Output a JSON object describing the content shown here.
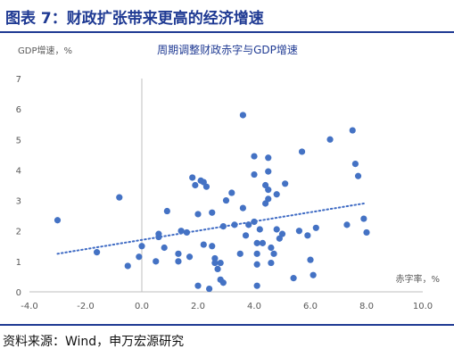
{
  "figure": {
    "title": "图表 7：财政扩张带来更高的经济增速",
    "source": "资料来源：Wind，申万宏源研究"
  },
  "colors": {
    "header_blue": "#1f3a93",
    "point_blue": "#4472c4",
    "trend_blue": "#3f6bc4",
    "axis_gray": "#bfbfbf",
    "text_gray": "#595959"
  },
  "chart_data": {
    "type": "scatter",
    "title": "周期调整财政赤字与GDP增速",
    "ylabel": "GDP增速，%",
    "xlabel": "赤字率，%",
    "xlim": [
      -4,
      10
    ],
    "ylim": [
      0,
      7
    ],
    "x_ticks": [
      -4,
      -2,
      0,
      2,
      4,
      6,
      8,
      10
    ],
    "x_tick_labels": [
      "-4.0",
      "-2.0",
      "0.0",
      "2.0",
      "4.0",
      "6.0",
      "8.0",
      "10.0"
    ],
    "y_ticks": [
      0,
      1,
      2,
      3,
      4,
      5,
      6,
      7
    ],
    "y_tick_labels": [
      "0",
      "1",
      "2",
      "3",
      "4",
      "5",
      "6",
      "7"
    ],
    "grid": false,
    "legend": "none",
    "trendline": {
      "style": "dotted",
      "x": [
        -3.0,
        7.9
      ],
      "y": [
        1.25,
        2.9
      ]
    },
    "points": [
      [
        -3.0,
        2.35
      ],
      [
        -0.8,
        3.1
      ],
      [
        -1.6,
        1.3
      ],
      [
        -0.5,
        0.85
      ],
      [
        -0.1,
        1.15
      ],
      [
        0.0,
        1.5
      ],
      [
        0.5,
        1.0
      ],
      [
        0.6,
        1.9
      ],
      [
        0.6,
        1.8
      ],
      [
        0.8,
        1.45
      ],
      [
        0.9,
        2.65
      ],
      [
        1.3,
        1.25
      ],
      [
        1.3,
        1.0
      ],
      [
        1.4,
        2.0
      ],
      [
        1.6,
        1.95
      ],
      [
        1.7,
        1.15
      ],
      [
        1.8,
        3.75
      ],
      [
        1.9,
        3.5
      ],
      [
        2.0,
        2.55
      ],
      [
        2.0,
        0.2
      ],
      [
        2.1,
        3.65
      ],
      [
        2.2,
        3.6
      ],
      [
        2.2,
        1.55
      ],
      [
        2.3,
        3.45
      ],
      [
        2.4,
        0.1
      ],
      [
        2.5,
        2.6
      ],
      [
        2.5,
        1.5
      ],
      [
        2.6,
        1.1
      ],
      [
        2.6,
        0.95
      ],
      [
        2.7,
        0.75
      ],
      [
        2.8,
        0.95
      ],
      [
        2.8,
        0.4
      ],
      [
        2.9,
        2.15
      ],
      [
        2.9,
        0.3
      ],
      [
        3.0,
        3.0
      ],
      [
        3.2,
        3.25
      ],
      [
        3.3,
        2.2
      ],
      [
        3.5,
        1.25
      ],
      [
        3.6,
        5.8
      ],
      [
        3.6,
        2.75
      ],
      [
        3.7,
        1.85
      ],
      [
        3.8,
        2.2
      ],
      [
        4.0,
        4.45
      ],
      [
        4.0,
        3.85
      ],
      [
        4.0,
        2.3
      ],
      [
        4.1,
        1.6
      ],
      [
        4.1,
        1.25
      ],
      [
        4.1,
        0.9
      ],
      [
        4.1,
        0.2
      ],
      [
        4.2,
        2.05
      ],
      [
        4.3,
        1.6
      ],
      [
        4.4,
        3.5
      ],
      [
        4.4,
        2.9
      ],
      [
        4.5,
        4.4
      ],
      [
        4.5,
        3.95
      ],
      [
        4.5,
        3.35
      ],
      [
        4.5,
        3.05
      ],
      [
        4.6,
        1.45
      ],
      [
        4.6,
        0.95
      ],
      [
        4.7,
        1.25
      ],
      [
        4.8,
        3.2
      ],
      [
        4.8,
        2.05
      ],
      [
        4.9,
        1.75
      ],
      [
        5.0,
        1.9
      ],
      [
        5.1,
        3.55
      ],
      [
        5.4,
        0.45
      ],
      [
        5.6,
        2.0
      ],
      [
        5.7,
        4.6
      ],
      [
        5.9,
        1.85
      ],
      [
        6.0,
        1.05
      ],
      [
        6.1,
        0.55
      ],
      [
        6.2,
        2.1
      ],
      [
        6.7,
        5.0
      ],
      [
        7.3,
        2.2
      ],
      [
        7.5,
        5.3
      ],
      [
        7.6,
        4.2
      ],
      [
        7.7,
        3.8
      ],
      [
        7.9,
        2.4
      ],
      [
        8.0,
        1.95
      ]
    ]
  }
}
